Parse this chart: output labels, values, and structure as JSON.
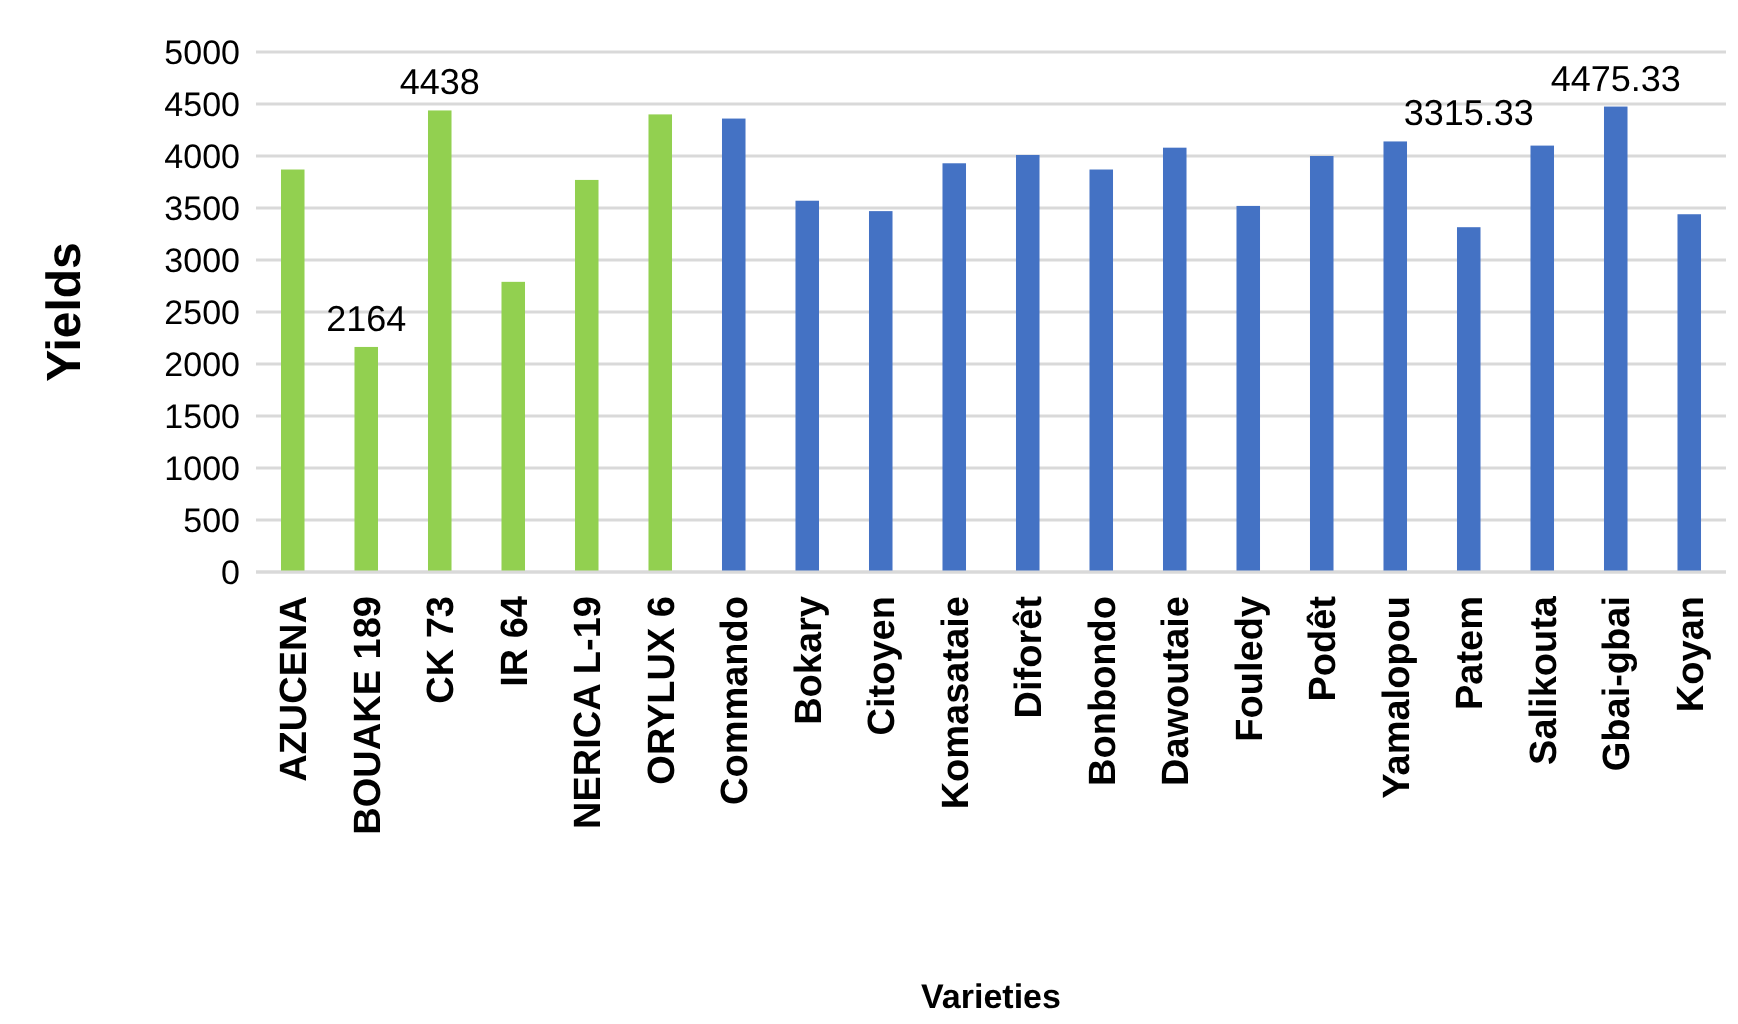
{
  "chart_data": {
    "type": "bar",
    "xlabel": "Varieties",
    "ylabel": "Yields",
    "categories": [
      "AZUCENA",
      "BOUAKE 189",
      "CK 73",
      "IR 64",
      "NERICA L-19",
      "ORYLUX 6",
      "Commando",
      "Bokary",
      "Citoyen",
      "Komasataie",
      "Diforêt",
      "Bonbondo",
      "Dawoutaie",
      "Fouledy",
      "Podêt",
      "Yamalopou",
      "Patem",
      "Salikouta",
      "Gbai-gbai",
      "Koyan"
    ],
    "values": [
      3870,
      2164,
      4438,
      2790,
      3770,
      4400,
      4360,
      3570,
      3470,
      3930,
      4010,
      3870,
      4080,
      3520,
      4000,
      4140,
      3315.33,
      4100,
      4475.33,
      3440
    ],
    "value_labels": [
      null,
      "2164",
      "4438",
      null,
      null,
      null,
      null,
      null,
      null,
      null,
      null,
      null,
      null,
      null,
      null,
      null,
      "3315.33",
      null,
      "4475.33",
      null
    ],
    "colors": [
      "#92d050",
      "#92d050",
      "#92d050",
      "#92d050",
      "#92d050",
      "#92d050",
      "#4472c4",
      "#4472c4",
      "#4472c4",
      "#4472c4",
      "#4472c4",
      "#4472c4",
      "#4472c4",
      "#4472c4",
      "#4472c4",
      "#4472c4",
      "#4472c4",
      "#4472c4",
      "#4472c4",
      "#4472c4"
    ],
    "ylim": [
      0,
      5000
    ],
    "yticks": [
      0,
      500,
      1000,
      1500,
      2000,
      2500,
      3000,
      3500,
      4000,
      4500,
      5000
    ],
    "grid": "y"
  }
}
